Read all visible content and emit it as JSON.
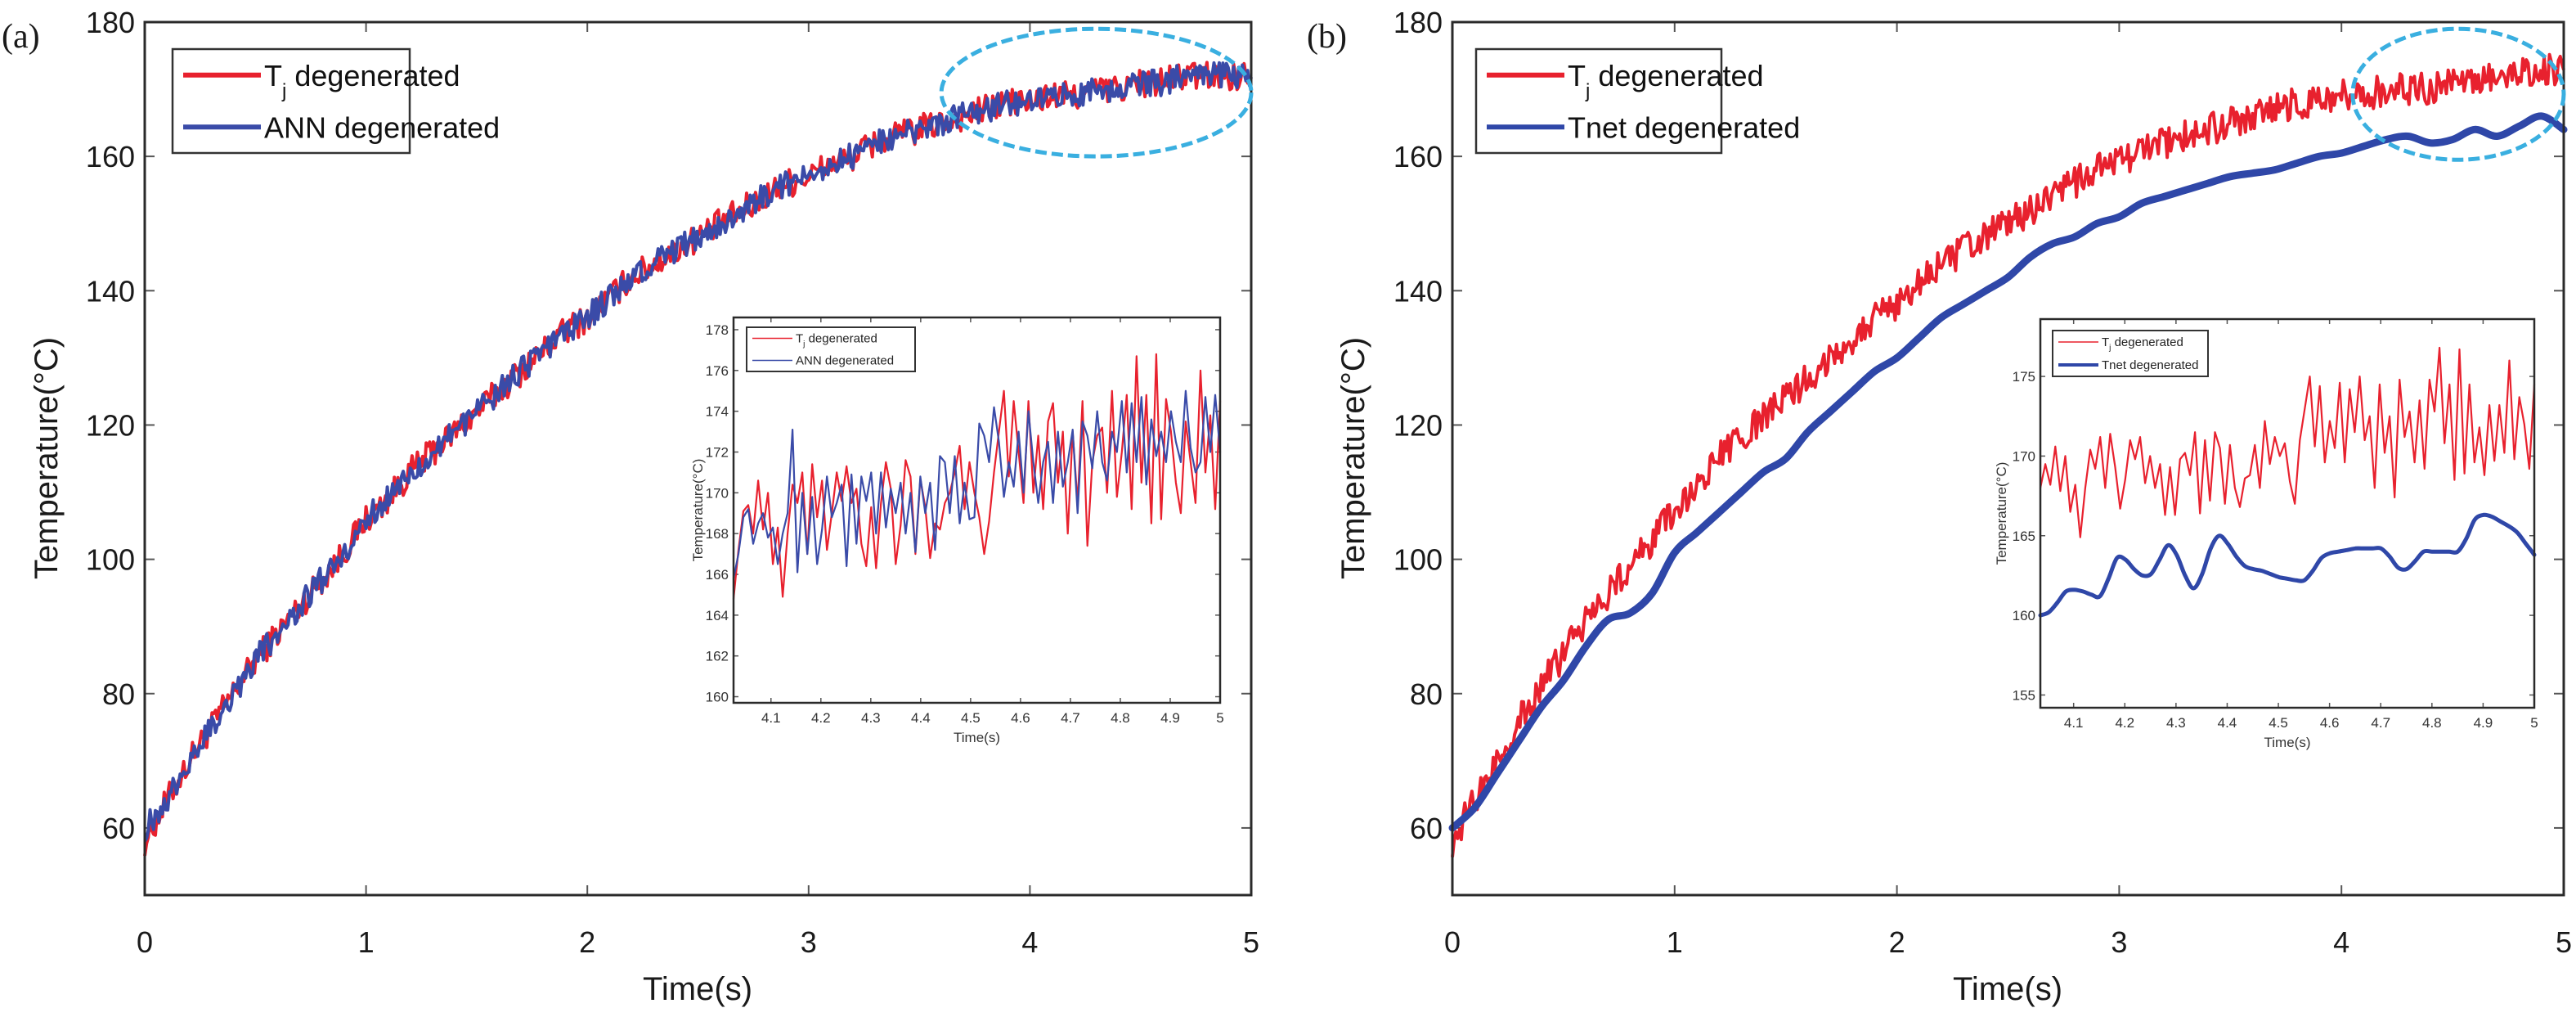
{
  "colors": {
    "tj": "#E8212E",
    "ann": "#3A4BA8",
    "tnet": "#2F47A8",
    "highlight": "#3AAFE0",
    "axis": "#222222"
  },
  "chart_data": [
    {
      "id": "a",
      "panel_label": "(a)",
      "type": "line",
      "xlabel": "Time(s)",
      "ylabel": "Temperature(°C)",
      "xlim": [
        0,
        5
      ],
      "ylim": [
        50,
        180
      ],
      "xticks": [
        0,
        1,
        2,
        3,
        4,
        5
      ],
      "yticks": [
        60,
        80,
        100,
        120,
        140,
        160,
        180
      ],
      "legend": {
        "placement": "top-left",
        "entries": [
          {
            "label": "T",
            "sub": "j",
            "rest": " degenerated",
            "series": "tj"
          },
          {
            "label": "ANN degenerated",
            "sub": "",
            "rest": "",
            "series": "ann"
          }
        ]
      },
      "highlight": {
        "shape": "dashed-ellipse",
        "x_range": [
          3.6,
          5.0
        ],
        "y_range": [
          160,
          179
        ]
      },
      "x": [
        0,
        0.1,
        0.2,
        0.3,
        0.4,
        0.5,
        0.6,
        0.7,
        0.8,
        0.9,
        1.0,
        1.1,
        1.2,
        1.3,
        1.4,
        1.5,
        1.6,
        1.7,
        1.8,
        1.9,
        2.0,
        2.1,
        2.2,
        2.3,
        2.4,
        2.5,
        2.6,
        2.7,
        2.8,
        2.9,
        3.0,
        3.1,
        3.2,
        3.3,
        3.4,
        3.5,
        3.6,
        3.7,
        3.8,
        3.9,
        4.0,
        4.1,
        4.2,
        4.3,
        4.4,
        4.5,
        4.6,
        4.7,
        4.8,
        4.9,
        5.0
      ],
      "series": [
        {
          "name": "Tj degenerated",
          "key": "tj",
          "noise": 2.2,
          "values": [
            58,
            64,
            70,
            75,
            80,
            85,
            89,
            93,
            97,
            101,
            106,
            109,
            113,
            116,
            119,
            122,
            125,
            128,
            131,
            134,
            136,
            139,
            142,
            144,
            146,
            148,
            150,
            152,
            154,
            156,
            157,
            159,
            160,
            162,
            163,
            164,
            165,
            166,
            167,
            168,
            168,
            169,
            169,
            170,
            170,
            171,
            171,
            172,
            172,
            172,
            172
          ]
        },
        {
          "name": "ANN degenerated",
          "key": "ann",
          "noise": 2.0,
          "values": [
            60,
            64,
            70,
            75,
            80,
            85,
            89,
            93,
            97,
            101,
            106,
            109,
            113,
            116,
            119,
            122,
            125,
            128,
            131,
            134,
            136,
            139,
            142,
            144,
            146,
            148,
            150,
            152,
            154,
            156,
            157,
            159,
            160,
            162,
            163,
            164,
            165,
            166,
            167,
            168,
            168,
            169,
            169,
            170,
            170,
            171,
            171,
            172,
            172,
            172,
            172
          ]
        }
      ],
      "inset": {
        "xlabel": "Time(s)",
        "ylabel": "Temperature(°C)",
        "xlim": [
          4.025,
          5
        ],
        "ylim": [
          159.7,
          178.6
        ],
        "xticks": [
          4.1,
          4.2,
          4.3,
          4.4,
          4.5,
          4.6,
          4.7,
          4.8,
          4.9,
          5
        ],
        "xtick_labels": [
          "4.1",
          "4.2",
          "4.3",
          "4.4",
          "4.5",
          "4.6",
          "4.7",
          "4.8",
          "4.9",
          "5"
        ],
        "yticks": [
          160,
          162,
          164,
          166,
          168,
          170,
          172,
          174,
          176,
          178
        ],
        "legend": {
          "placement": "top-left",
          "entries": [
            {
              "label": "T",
              "sub": "j",
              "rest": " degenerated",
              "series": "tj"
            },
            {
              "label": "ANN degenerated",
              "sub": "",
              "rest": "",
              "series": "ann"
            }
          ]
        },
        "x_start": 4.025,
        "x_step": 0.01,
        "series": [
          {
            "name": "Tj degenerated",
            "key": "tj",
            "values": [
              164.8,
              167.2,
              169.1,
              169.4,
              168.0,
              170.6,
              168.2,
              170.0,
              166.5,
              168.3,
              164.9,
              168.0,
              170.4,
              169.5,
              171.0,
              167.0,
              171.4,
              168.8,
              170.6,
              167.2,
              169.0,
              171.0,
              169.6,
              171.3,
              169.5,
              170.2,
              167.5,
              166.4,
              169.3,
              166.3,
              169.5,
              171.5,
              170.2,
              166.5,
              168.4,
              171.6,
              170.8,
              167.0,
              170.7,
              169.3,
              166.8,
              168.5,
              168.2,
              169.5,
              170.0,
              171.0,
              172.3,
              169.2,
              171.5,
              170.0,
              168.8,
              167.0,
              168.6,
              171.0,
              173.0,
              175.0,
              170.8,
              174.5,
              172.0,
              169.5,
              174.5,
              170.0,
              172.8,
              169.2,
              173.5,
              174.4,
              170.5,
              173.0,
              168.0,
              173.0,
              169.5,
              174.5,
              167.4,
              171.5,
              172.8,
              173.2,
              170.0,
              175.0,
              169.8,
              172.0,
              174.8,
              169.2,
              176.7,
              170.5,
              174.8,
              168.5,
              176.8,
              168.7,
              174.6,
              173.0,
              170.5,
              169.0,
              173.5,
              171.5,
              169.5,
              176.0,
              171.0,
              173.8,
              169.2,
              174.5
            ]
          },
          {
            "name": "ANN degenerated",
            "key": "ann",
            "values": [
              165.8,
              167.0,
              168.8,
              169.2,
              167.5,
              168.5,
              169.0,
              167.8,
              168.3,
              166.5,
              168.0,
              169.0,
              173.1,
              166.1,
              170.0,
              167.0,
              169.8,
              166.5,
              168.2,
              170.8,
              168.8,
              169.5,
              170.4,
              166.4,
              170.9,
              167.5,
              170.8,
              169.6,
              171.0,
              168.0,
              171.0,
              168.3,
              170.2,
              169.0,
              170.5,
              168.0,
              170.0,
              167.1,
              170.8,
              169.0,
              170.5,
              167.2,
              171.8,
              171.5,
              169.0,
              171.8,
              168.5,
              170.5,
              168.7,
              168.8,
              173.4,
              172.8,
              171.5,
              174.2,
              172.5,
              169.8,
              171.5,
              170.3,
              173.0,
              170.0,
              174.0,
              171.5,
              169.5,
              171.5,
              172.5,
              169.5,
              173.0,
              170.3,
              171.5,
              173.1,
              169.0,
              173.5,
              172.8,
              171.2,
              174.0,
              171.5,
              170.6,
              173.0,
              172.0,
              174.5,
              171.0,
              174.4,
              171.5,
              174.7,
              170.4,
              173.6,
              171.8,
              173.0,
              171.5,
              174.0,
              172.5,
              171.5,
              175.0,
              172.2,
              171.0,
              171.5,
              174.7,
              172.0,
              174.8,
              172.0
            ]
          }
        ]
      }
    },
    {
      "id": "b",
      "panel_label": "(b)",
      "type": "line",
      "xlabel": "Time(s)",
      "ylabel": "Temperature(°C)",
      "xlim": [
        0,
        5
      ],
      "ylim": [
        50,
        180
      ],
      "xticks": [
        0,
        1,
        2,
        3,
        4,
        5
      ],
      "yticks": [
        60,
        80,
        100,
        120,
        140,
        160,
        180
      ],
      "legend": {
        "placement": "top-left",
        "entries": [
          {
            "label": "T",
            "sub": "j",
            "rest": " degenerated",
            "series": "tj"
          },
          {
            "label": "Tnet degenerated",
            "sub": "",
            "rest": "",
            "series": "tnet"
          }
        ]
      },
      "highlight": {
        "shape": "dashed-ellipse",
        "x_range": [
          4.05,
          5.0
        ],
        "y_range": [
          159.5,
          179
        ]
      },
      "x": [
        0,
        0.1,
        0.2,
        0.3,
        0.4,
        0.5,
        0.6,
        0.7,
        0.8,
        0.9,
        1.0,
        1.1,
        1.2,
        1.3,
        1.4,
        1.5,
        1.6,
        1.7,
        1.8,
        1.9,
        2.0,
        2.1,
        2.2,
        2.3,
        2.4,
        2.5,
        2.6,
        2.7,
        2.8,
        2.9,
        3.0,
        3.1,
        3.2,
        3.3,
        3.4,
        3.5,
        3.6,
        3.7,
        3.8,
        3.9,
        4.0,
        4.1,
        4.2,
        4.3,
        4.4,
        4.5,
        4.6,
        4.7,
        4.8,
        4.9,
        5.0
      ],
      "series": [
        {
          "name": "Tj degenerated",
          "key": "tj",
          "noise": 2.4,
          "values": [
            58,
            64,
            70,
            76,
            81,
            86,
            91,
            95,
            99,
            103,
            107,
            111,
            115,
            118,
            121,
            124,
            127,
            130,
            133,
            136,
            138,
            141,
            144,
            146,
            148,
            150,
            152,
            154,
            156,
            158,
            159,
            161,
            162,
            163,
            164,
            165,
            166,
            167,
            168,
            168,
            169,
            169,
            170,
            170,
            170,
            171,
            171,
            172,
            172,
            173,
            173
          ]
        },
        {
          "name": "Tnet degenerated",
          "key": "tnet",
          "noise": 0,
          "values": [
            60,
            63,
            68,
            73,
            78,
            82,
            87,
            91,
            92,
            95,
            101,
            104,
            107,
            110,
            113,
            115,
            119,
            122,
            125,
            128,
            130,
            133,
            136,
            138,
            140,
            142,
            145,
            147,
            148,
            150,
            151,
            153,
            154,
            155,
            156,
            157,
            157.5,
            158,
            159,
            160,
            160.5,
            161.5,
            162.5,
            163,
            162,
            162.5,
            164,
            163,
            164.5,
            166,
            164
          ]
        }
      ],
      "inset": {
        "xlabel": "Time(s)",
        "ylabel": "Temperature(°C)",
        "xlim": [
          4.035,
          5
        ],
        "ylim": [
          154.2,
          178.6
        ],
        "xticks": [
          4.1,
          4.2,
          4.3,
          4.4,
          4.5,
          4.6,
          4.7,
          4.8,
          4.9,
          5
        ],
        "xtick_labels": [
          "4.1",
          "4.2",
          "4.3",
          "4.4",
          "4.5",
          "4.6",
          "4.7",
          "4.8",
          "4.9",
          "5"
        ],
        "yticks": [
          155,
          160,
          165,
          170,
          175
        ],
        "legend": {
          "placement": "top-left",
          "entries": [
            {
              "label": "T",
              "sub": "j",
              "rest": " degenerated",
              "series": "tj"
            },
            {
              "label": "Tnet degenerated",
              "sub": "",
              "rest": "",
              "series": "tnet"
            }
          ]
        },
        "x_start": 4.035,
        "x_step": 0.01,
        "series": [
          {
            "name": "Tj degenerated",
            "key": "tj",
            "values": [
              168.0,
              169.5,
              168.2,
              170.6,
              167.8,
              170.0,
              166.5,
              168.2,
              164.9,
              168.0,
              170.4,
              169.2,
              171.2,
              168.0,
              171.4,
              169.3,
              166.7,
              168.5,
              171.0,
              169.8,
              171.2,
              168.3,
              170.0,
              168.0,
              169.5,
              166.3,
              169.3,
              166.3,
              169.8,
              170.2,
              168.8,
              171.5,
              166.4,
              171.0,
              167.2,
              171.5,
              170.5,
              167.0,
              170.7,
              168.0,
              166.8,
              168.6,
              168.8,
              170.7,
              168.0,
              172.2,
              169.5,
              171.2,
              170.0,
              170.8,
              168.4,
              167.0,
              171.0,
              173.0,
              175.0,
              170.6,
              174.4,
              169.6,
              172.2,
              170.5,
              174.6,
              169.6,
              174.2,
              171.5,
              175.0,
              171.0,
              172.5,
              168.0,
              174.5,
              170.2,
              172.5,
              167.4,
              174.8,
              171.2,
              172.8,
              169.6,
              173.5,
              169.2,
              174.8,
              172.8,
              176.8,
              170.8,
              174.5,
              168.5,
              176.7,
              168.9,
              174.5,
              169.6,
              171.8,
              168.8,
              173.2,
              169.7,
              173.2,
              170.2,
              176.0,
              169.8,
              173.7,
              172.0,
              169.2,
              174.5
            ]
          },
          {
            "name": "Tnet degenerated",
            "key": "tnet",
            "values": [
              160.0,
              160.2,
              160.8,
              161.5,
              161.6,
              161.5,
              161.3,
              161.2,
              162.3,
              163.6,
              163.5,
              162.9,
              162.5,
              162.6,
              163.5,
              164.4,
              163.8,
              162.5,
              161.7,
              162.6,
              164.2,
              165.0,
              164.5,
              163.7,
              163.1,
              162.9,
              162.8,
              162.6,
              162.4,
              162.3,
              162.2,
              162.2,
              162.8,
              163.6,
              163.9,
              164.0,
              164.1,
              164.2,
              164.2,
              164.2,
              164.2,
              163.7,
              163.0,
              162.9,
              163.4,
              164.0,
              164.0,
              164.0,
              164.0,
              164.0,
              164.8,
              166.0,
              166.3,
              166.2,
              165.9,
              165.6,
              165.2,
              164.5,
              163.8
            ]
          }
        ]
      }
    }
  ]
}
